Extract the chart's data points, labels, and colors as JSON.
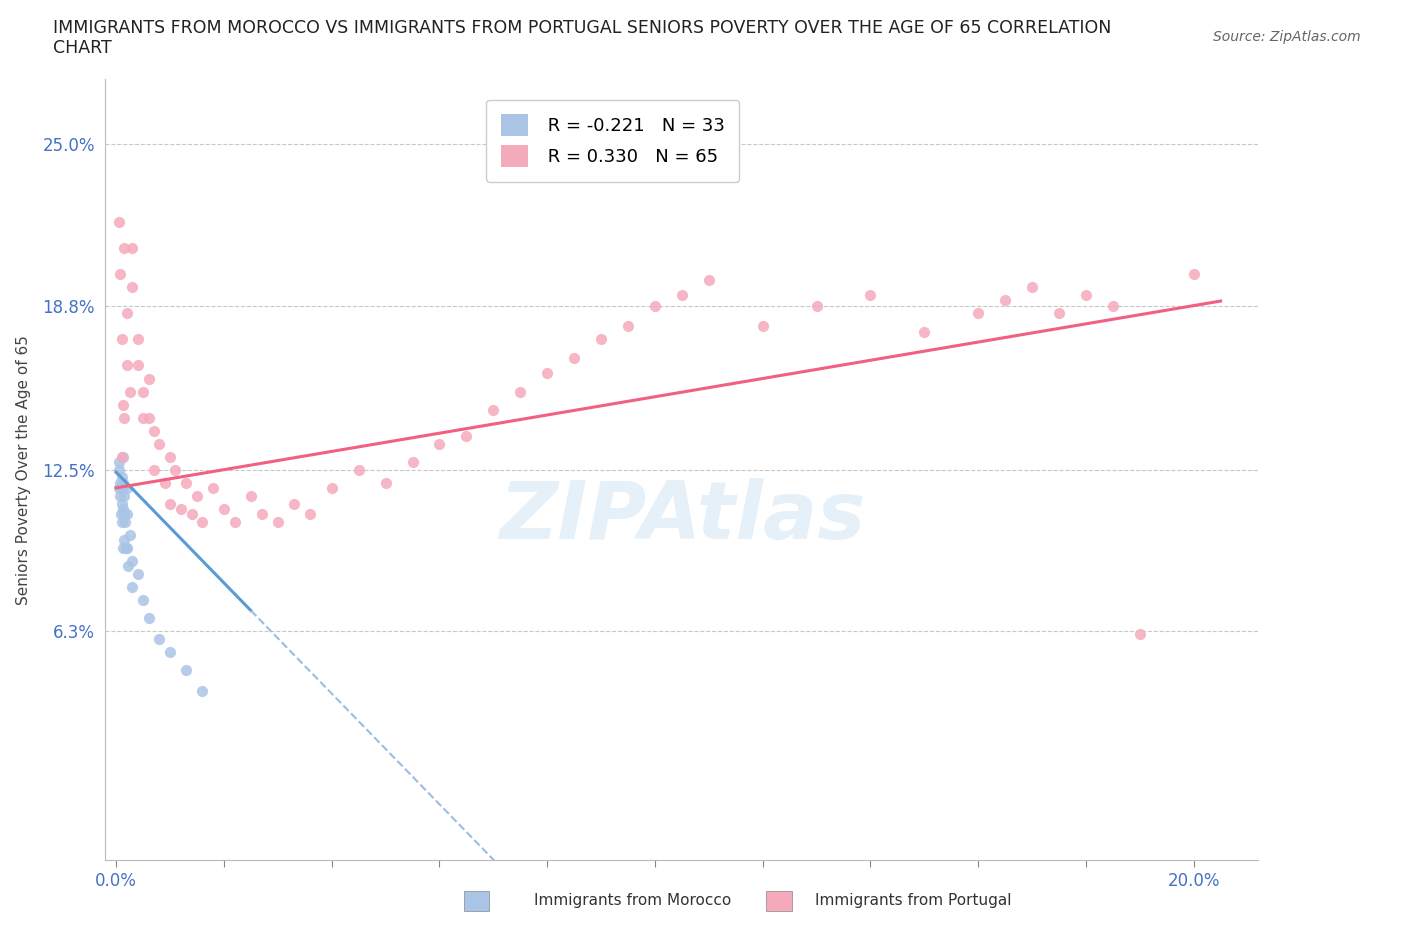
{
  "title_line1": "IMMIGRANTS FROM MOROCCO VS IMMIGRANTS FROM PORTUGAL SENIORS POVERTY OVER THE AGE OF 65 CORRELATION",
  "title_line2": "CHART",
  "source": "Source: ZipAtlas.com",
  "ylabel": "Seniors Poverty Over the Age of 65",
  "legend_morocco": "Immigrants from Morocco",
  "legend_portugal": "Immigrants from Portugal",
  "r_morocco": -0.221,
  "n_morocco": 33,
  "r_portugal": 0.33,
  "n_portugal": 65,
  "color_morocco": "#aac4e5",
  "color_portugal": "#f5aabc",
  "color_trendline_morocco": "#5b9bd5",
  "color_trendline_portugal": "#f06080",
  "color_dashed": "#9dbde0",
  "color_axis_labels": "#4472c4",
  "background_color": "#ffffff",
  "grid_color": "#c8c8c8",
  "watermark": "ZIPAtlas",
  "watermark_color": "#d0e4f5",
  "morocco_x": [
    0.0005,
    0.0005,
    0.0005,
    0.0007,
    0.0007,
    0.0008,
    0.001,
    0.001,
    0.001,
    0.001,
    0.0012,
    0.0012,
    0.0013,
    0.0013,
    0.0015,
    0.0015,
    0.0015,
    0.0017,
    0.0018,
    0.002,
    0.002,
    0.002,
    0.0022,
    0.0025,
    0.003,
    0.003,
    0.004,
    0.005,
    0.006,
    0.008,
    0.01,
    0.013,
    0.016
  ],
  "morocco_y": [
    0.125,
    0.118,
    0.128,
    0.12,
    0.115,
    0.108,
    0.122,
    0.118,
    0.112,
    0.105,
    0.13,
    0.12,
    0.11,
    0.095,
    0.115,
    0.108,
    0.098,
    0.105,
    0.095,
    0.118,
    0.108,
    0.095,
    0.088,
    0.1,
    0.09,
    0.08,
    0.085,
    0.075,
    0.068,
    0.06,
    0.055,
    0.048,
    0.04
  ],
  "portugal_x": [
    0.0005,
    0.0007,
    0.001,
    0.001,
    0.0012,
    0.0015,
    0.0015,
    0.002,
    0.002,
    0.0025,
    0.003,
    0.003,
    0.004,
    0.004,
    0.005,
    0.005,
    0.006,
    0.006,
    0.007,
    0.007,
    0.008,
    0.009,
    0.01,
    0.01,
    0.011,
    0.012,
    0.013,
    0.014,
    0.015,
    0.016,
    0.018,
    0.02,
    0.022,
    0.025,
    0.027,
    0.03,
    0.033,
    0.036,
    0.04,
    0.045,
    0.05,
    0.055,
    0.06,
    0.065,
    0.07,
    0.075,
    0.08,
    0.085,
    0.09,
    0.095,
    0.1,
    0.105,
    0.11,
    0.12,
    0.13,
    0.14,
    0.15,
    0.16,
    0.165,
    0.17,
    0.175,
    0.18,
    0.185,
    0.19,
    0.2
  ],
  "portugal_y": [
    0.22,
    0.2,
    0.13,
    0.175,
    0.15,
    0.145,
    0.21,
    0.185,
    0.165,
    0.155,
    0.21,
    0.195,
    0.175,
    0.165,
    0.155,
    0.145,
    0.16,
    0.145,
    0.14,
    0.125,
    0.135,
    0.12,
    0.13,
    0.112,
    0.125,
    0.11,
    0.12,
    0.108,
    0.115,
    0.105,
    0.118,
    0.11,
    0.105,
    0.115,
    0.108,
    0.105,
    0.112,
    0.108,
    0.118,
    0.125,
    0.12,
    0.128,
    0.135,
    0.138,
    0.148,
    0.155,
    0.162,
    0.168,
    0.175,
    0.18,
    0.188,
    0.192,
    0.198,
    0.18,
    0.188,
    0.192,
    0.178,
    0.185,
    0.19,
    0.195,
    0.185,
    0.192,
    0.188,
    0.062,
    0.2
  ],
  "trendline_morocco_x0": 0.0,
  "trendline_morocco_y0": 0.124,
  "trendline_morocco_x1": 0.016,
  "trendline_morocco_y1": 0.09,
  "trendline_portugal_x0": 0.0,
  "trendline_portugal_y0": 0.118,
  "trendline_portugal_x1": 0.2,
  "trendline_portugal_y1": 0.188,
  "xlim_min": -0.002,
  "xlim_max": 0.212,
  "ylim_min": -0.025,
  "ylim_max": 0.275,
  "xtick_positions": [
    0.0,
    0.02,
    0.04,
    0.06,
    0.08,
    0.1,
    0.12,
    0.14,
    0.16,
    0.18,
    0.2
  ],
  "ytick_positions": [
    0.063,
    0.125,
    0.188,
    0.25
  ],
  "ytick_labels": [
    "6.3%",
    "12.5%",
    "18.8%",
    "25.0%"
  ]
}
